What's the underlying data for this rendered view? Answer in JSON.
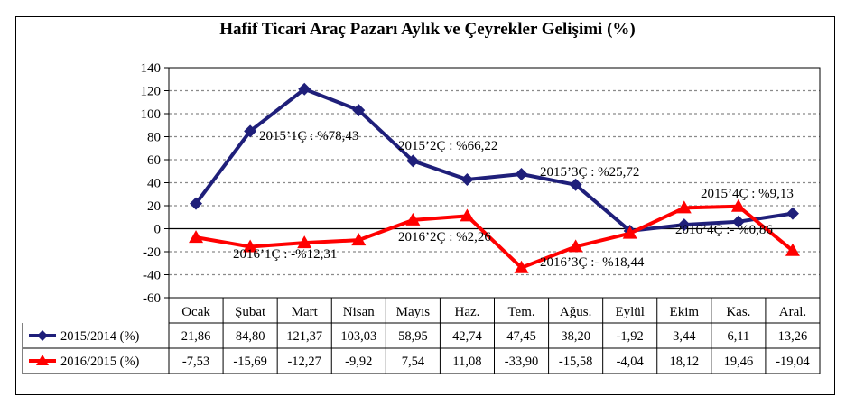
{
  "chart_data": {
    "type": "line",
    "title": "Hafif Ticari Araç Pazarı Aylık ve Çeyrekler Gelişimi (%)",
    "categories": [
      "Ocak",
      "Şubat",
      "Mart",
      "Nisan",
      "Mayıs",
      "Haz.",
      "Tem.",
      "Ağus.",
      "Eylül",
      "Ekim",
      "Kas.",
      "Aral."
    ],
    "ylim": [
      -60,
      140
    ],
    "yticks": [
      -60,
      -40,
      -20,
      0,
      20,
      40,
      60,
      80,
      100,
      120,
      140
    ],
    "ytick_labels": [
      "-60",
      "-40",
      "-20",
      "0",
      "20",
      "40",
      "60",
      "80",
      "100",
      "120",
      "140"
    ],
    "grid": true,
    "series": [
      {
        "name": "2015/2014 (%)",
        "color": "#1f1f7a",
        "marker": "diamond",
        "values": [
          21.86,
          84.8,
          121.37,
          103.03,
          58.95,
          42.74,
          47.45,
          38.2,
          -1.92,
          3.44,
          6.11,
          13.26
        ],
        "table_values": [
          "21,86",
          "84,80",
          "121,37",
          "103,03",
          "58,95",
          "42,74",
          "47,45",
          "38,20",
          "-1,92",
          "3,44",
          "6,11",
          "13,26"
        ]
      },
      {
        "name": "2016/2015 (%)",
        "color": "#ff0000",
        "marker": "triangle",
        "values": [
          -7.53,
          -15.69,
          -12.27,
          -9.92,
          7.54,
          11.08,
          -33.9,
          -15.58,
          -4.04,
          18.12,
          19.46,
          -19.04
        ],
        "table_values": [
          "-7,53",
          "-15,69",
          "-12,27",
          "-9,92",
          "7,54",
          "11,08",
          "-33,90",
          "-15,58",
          "-4,04",
          "18,12",
          "19,46",
          "-19,04"
        ]
      }
    ],
    "annotations": [
      "2015’1Ç : %78,43",
      "2015’2Ç : %66,22",
      "2015’3Ç : %25,72",
      "2015’4Ç : %9,13",
      "2016’1Ç : -%12,31",
      "2016’2Ç : %2,26",
      "2016’3Ç :- %18,44",
      "2016’4Ç :- %0,86"
    ]
  }
}
